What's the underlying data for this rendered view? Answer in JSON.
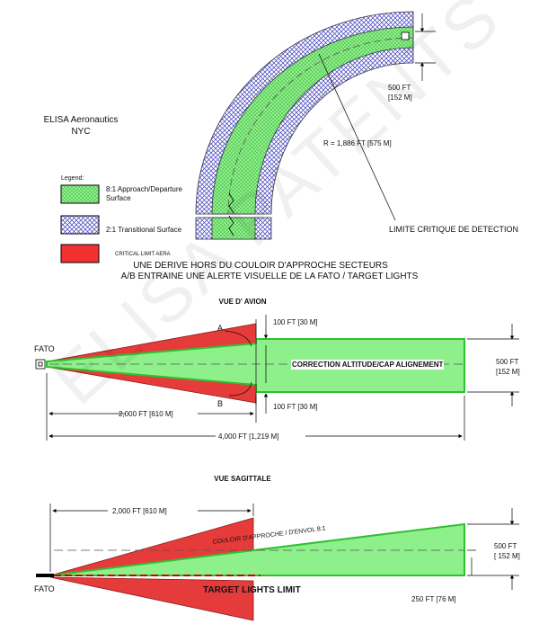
{
  "header": {
    "company": "ELISA Aeronautics",
    "location": "NYC"
  },
  "legend": {
    "title": "Legend:",
    "items": [
      "8:1 Approach/Departure Surface",
      "2:1 Transitional Surface",
      "CRITICAL LIMIT AERA"
    ]
  },
  "top_view": {
    "width_ft": "500 FT",
    "width_m": "[152 M]",
    "radius": "R = 1,886 FT [575 M]",
    "limit": "LIMITE CRITIQUE DE DETECTION"
  },
  "caption": [
    "UNE DERIVE HORS DU COULOIR D'APPROCHE SECTEURS",
    "A/B ENTRAINE UNE ALERTE VISUELLE DE LA FATO / TARGET LIGHTS"
  ],
  "plan_view": {
    "title": "VUE D' AVION",
    "fato": "FATO",
    "sector_a": "A",
    "sector_b": "B",
    "offset_top": "100 FT [30 M]",
    "offset_bottom": "100 FT [30 M]",
    "center_label": "CORRECTION ALTITUDE/CAP ALIGNEMENT",
    "width_ft": "500 FT",
    "width_m": "[152 M]",
    "dist_half": "2,000 FT [610 M]",
    "dist_full": "4,000 FT [1,219 M]"
  },
  "sagittal_view": {
    "title": "VUE SAGITTALE",
    "dist_half": "2,000 FT [610 M]",
    "corridor": "COULOIR D'APPROCHE / D'ENVOL 8:1",
    "height_ft": "500 FT",
    "height_m": "[ 152 M]",
    "fato": "FATO",
    "target_limit": "TARGET LIGHTS LIMIT",
    "height_low": "250 FT [76 M]"
  },
  "watermark": "ELISA PATENTS"
}
